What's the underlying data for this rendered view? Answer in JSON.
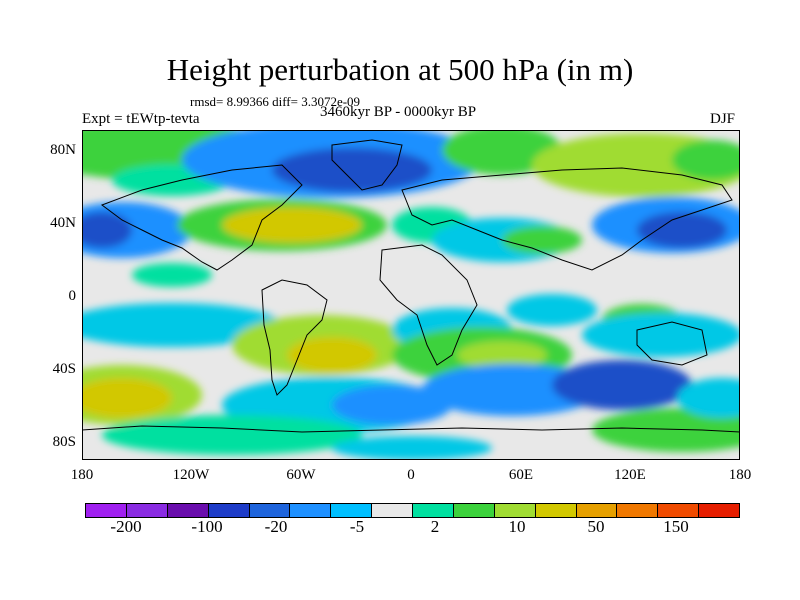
{
  "title": "Height perturbation at 500 hPa (in m)",
  "stats": "rmsd= 8.99366 diff= 3.3072e-09",
  "expt": "Expt = tEWtp-tevta",
  "period": "3460kyr BP - 0000kyr BP",
  "season": "DJF",
  "lat_labels": [
    "80N",
    "40N",
    "0",
    "40S",
    "80S"
  ],
  "lon_labels": [
    "180",
    "120W",
    "60W",
    "0",
    "60E",
    "120E",
    "180"
  ],
  "colorbar": {
    "colors": [
      "#a020f0",
      "#8a2be2",
      "#6a0dad",
      "#1e3cc8",
      "#1e64dc",
      "#1e90ff",
      "#00bfff",
      "#e8e8e8",
      "#00e0a0",
      "#3cd23c",
      "#a0dc32",
      "#d2c800",
      "#e6a000",
      "#f07800",
      "#f04b00",
      "#e61e00"
    ],
    "labels": [
      "-200",
      "-100",
      "-20",
      "-5",
      "2",
      "10",
      "50",
      "150"
    ]
  },
  "field_palette": {
    "strong_neg": "#1e50c8",
    "neg": "#1e90ff",
    "weak_neg": "#00c8e6",
    "neutral": "#e8e8e8",
    "weak_pos": "#00e0a0",
    "pos": "#3cd23c",
    "strong_pos": "#a0dc32",
    "hi_pos": "#d2c800"
  }
}
